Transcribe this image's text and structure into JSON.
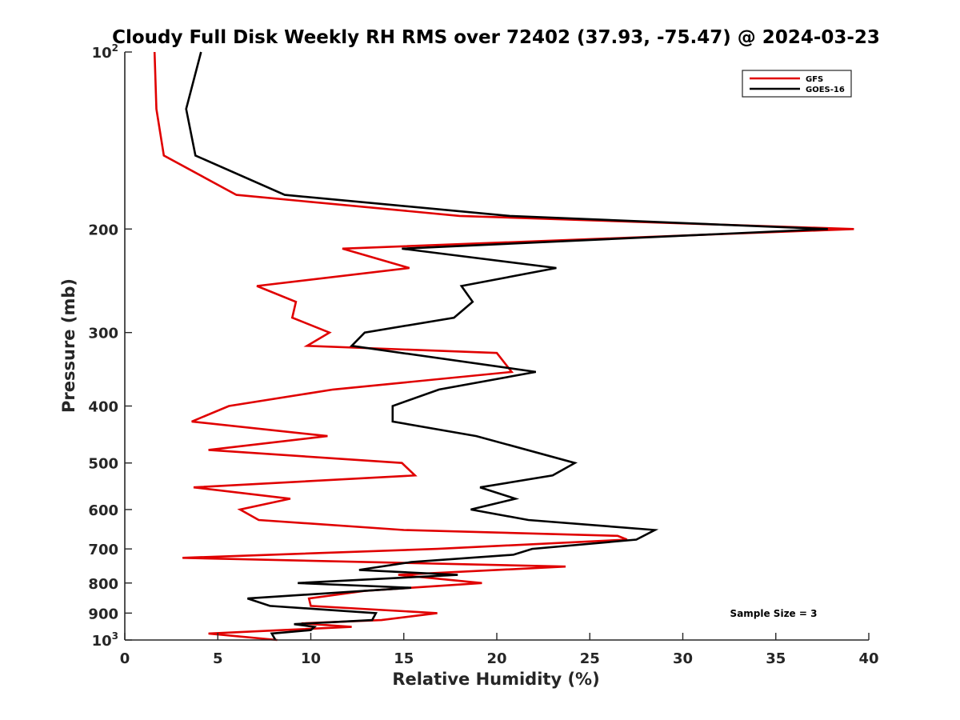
{
  "chart_data": {
    "type": "line",
    "title": "Cloudy Full Disk Weekly RH RMS over 72402 (37.93, -75.47) @ 2024-03-23",
    "xlabel": "Relative Humidity (%)",
    "ylabel": "Pressure (mb)",
    "xlim": [
      0,
      40
    ],
    "xticks": [
      "0",
      "5",
      "10",
      "15",
      "20",
      "25",
      "30",
      "35",
      "40"
    ],
    "ylim": [
      100,
      1000
    ],
    "yscale": "log",
    "yaxis_reversed": true,
    "yticks": [
      {
        "value": 100,
        "base": "10",
        "exp": "2"
      },
      {
        "value": 200,
        "label": "200"
      },
      {
        "value": 300,
        "label": "300"
      },
      {
        "value": 400,
        "label": "400"
      },
      {
        "value": 500,
        "label": "500"
      },
      {
        "value": 600,
        "label": "600"
      },
      {
        "value": 700,
        "label": "700"
      },
      {
        "value": 800,
        "label": "800"
      },
      {
        "value": 900,
        "label": "900"
      },
      {
        "value": 1000,
        "base": "10",
        "exp": "3"
      }
    ],
    "grid": false,
    "legend_position": "top-right",
    "annotation": "Sample Size = 3",
    "series": [
      {
        "name": "GFS",
        "color": "#e00000",
        "points": [
          [
            1.6,
            100
          ],
          [
            1.7,
            125
          ],
          [
            2.1,
            150
          ],
          [
            6.0,
            175
          ],
          [
            18.0,
            190
          ],
          [
            39.2,
            200
          ],
          [
            11.7,
            216
          ],
          [
            15.3,
            233
          ],
          [
            7.1,
            250
          ],
          [
            9.2,
            266
          ],
          [
            9.0,
            283
          ],
          [
            11.0,
            300
          ],
          [
            9.8,
            316
          ],
          [
            20.0,
            325
          ],
          [
            20.8,
            350
          ],
          [
            11.2,
            375
          ],
          [
            5.6,
            400
          ],
          [
            3.6,
            425
          ],
          [
            10.9,
            450
          ],
          [
            4.5,
            475
          ],
          [
            14.9,
            500
          ],
          [
            15.6,
            525
          ],
          [
            3.7,
            550
          ],
          [
            8.9,
            575
          ],
          [
            6.2,
            600
          ],
          [
            7.2,
            625
          ],
          [
            15.0,
            650
          ],
          [
            26.5,
            665
          ],
          [
            27.0,
            675
          ],
          [
            16.8,
            700
          ],
          [
            3.1,
            725
          ],
          [
            23.7,
            750
          ],
          [
            14.7,
            775
          ],
          [
            19.2,
            800
          ],
          [
            12.9,
            825
          ],
          [
            9.9,
            850
          ],
          [
            10.0,
            875
          ],
          [
            16.8,
            900
          ],
          [
            13.8,
            925
          ],
          [
            9.5,
            937
          ],
          [
            12.2,
            950
          ],
          [
            8.5,
            962
          ],
          [
            4.5,
            975
          ],
          [
            8.2,
            1000
          ]
        ]
      },
      {
        "name": "GOES-16",
        "color": "#000000",
        "points": [
          [
            4.1,
            100
          ],
          [
            3.3,
            125
          ],
          [
            3.8,
            150
          ],
          [
            8.6,
            175
          ],
          [
            20.7,
            190
          ],
          [
            37.8,
            200
          ],
          [
            14.9,
            216
          ],
          [
            23.2,
            233
          ],
          [
            18.1,
            250
          ],
          [
            18.7,
            266
          ],
          [
            17.7,
            283
          ],
          [
            12.9,
            300
          ],
          [
            12.2,
            316
          ],
          [
            22.1,
            350
          ],
          [
            16.9,
            375
          ],
          [
            14.4,
            400
          ],
          [
            14.4,
            425
          ],
          [
            18.9,
            450
          ],
          [
            24.2,
            500
          ],
          [
            23.0,
            525
          ],
          [
            19.1,
            550
          ],
          [
            21.0,
            575
          ],
          [
            18.6,
            600
          ],
          [
            21.7,
            625
          ],
          [
            28.5,
            650
          ],
          [
            27.5,
            675
          ],
          [
            21.9,
            700
          ],
          [
            20.9,
            716
          ],
          [
            15.4,
            737
          ],
          [
            12.6,
            760
          ],
          [
            17.9,
            775
          ],
          [
            9.3,
            800
          ],
          [
            15.4,
            815
          ],
          [
            6.6,
            850
          ],
          [
            7.8,
            875
          ],
          [
            13.5,
            900
          ],
          [
            13.3,
            925
          ],
          [
            9.1,
            940
          ],
          [
            10.2,
            950
          ],
          [
            10.0,
            962
          ],
          [
            7.9,
            975
          ],
          [
            8.1,
            1000
          ]
        ]
      }
    ]
  }
}
